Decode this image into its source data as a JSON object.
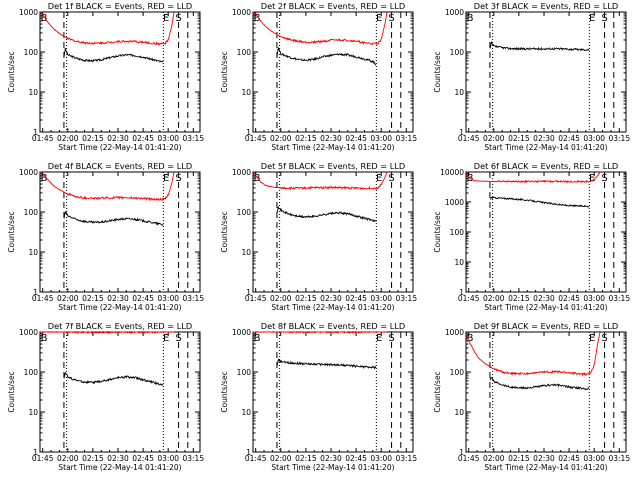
{
  "common": {
    "x_tick_labels": [
      "01:45",
      "02:00",
      "02:15",
      "02:30",
      "02:45",
      "03:00",
      "03:15"
    ],
    "x_ticks_minutes": [
      0,
      15,
      30,
      45,
      60,
      75,
      90
    ],
    "xlabel": "Start Time (22-May-14 01:41:20)",
    "ylabel": "Counts/sec",
    "marker_labels": {
      "start": "B",
      "end": "E",
      "sat": "S"
    },
    "colors": {
      "events": "#000000",
      "lld": "#ff0000"
    }
  },
  "chart_data": [
    {
      "type": "line",
      "title": "Det 1f BLACK = Events, RED = LLD",
      "ylim": [
        1,
        1000
      ],
      "y_tick_labels": [
        "1",
        "10",
        "100",
        "1000"
      ],
      "x_range_minutes": [
        -1.6,
        94
      ],
      "markers": {
        "B": -1,
        "dash1": 12.7,
        "dot1": 14.3,
        "dot2": 72.1,
        "E": 73.8,
        "S": 81.2,
        "dash3": 86.7
      },
      "series": [
        {
          "name": "Events",
          "color": "#000000",
          "x": [
            12.8,
            13.5,
            15,
            20,
            25,
            30,
            35,
            40,
            45,
            50,
            55,
            60,
            65,
            70,
            72
          ],
          "values": [
            80,
            120,
            85,
            70,
            62,
            60,
            64,
            72,
            80,
            85,
            82,
            75,
            66,
            58,
            55
          ]
        },
        {
          "name": "LLD",
          "color": "#ff0000",
          "x": [
            -1.5,
            0,
            3,
            6,
            10,
            15,
            20,
            25,
            30,
            35,
            40,
            45,
            50,
            55,
            60,
            65,
            70,
            73,
            75,
            77,
            78.5
          ],
          "values": [
            1050,
            850,
            560,
            400,
            290,
            215,
            185,
            170,
            165,
            168,
            175,
            182,
            185,
            182,
            175,
            165,
            160,
            160,
            200,
            420,
            1000
          ]
        }
      ]
    },
    {
      "type": "line",
      "title": "Det 2f BLACK = Events, RED = LLD",
      "ylim": [
        1,
        1000
      ],
      "y_tick_labels": [
        "1",
        "10",
        "100",
        "1000"
      ],
      "x_range_minutes": [
        -1.6,
        94
      ],
      "markers": {
        "B": -1,
        "dash1": 12.7,
        "dot1": 14.3,
        "dot2": 72.1,
        "E": 73.8,
        "S": 81.2,
        "dash3": 86.7
      },
      "series": [
        {
          "name": "Events",
          "color": "#000000",
          "x": [
            12.8,
            13.5,
            15,
            20,
            25,
            30,
            35,
            40,
            45,
            50,
            55,
            60,
            65,
            70,
            72
          ],
          "values": [
            85,
            130,
            90,
            75,
            65,
            62,
            66,
            75,
            83,
            88,
            84,
            76,
            67,
            58,
            48
          ]
        },
        {
          "name": "LLD",
          "color": "#ff0000",
          "x": [
            -1.5,
            0,
            3,
            6,
            10,
            15,
            20,
            25,
            30,
            35,
            40,
            45,
            50,
            55,
            60,
            65,
            70,
            73,
            75,
            77,
            78.5
          ],
          "values": [
            1050,
            900,
            600,
            430,
            320,
            240,
            205,
            185,
            175,
            178,
            185,
            195,
            200,
            195,
            185,
            170,
            160,
            162,
            210,
            450,
            1000
          ]
        }
      ]
    },
    {
      "type": "line",
      "title": "Det 3f BLACK = Events, RED = LLD",
      "ylim": [
        1,
        1000
      ],
      "y_tick_labels": [
        "1",
        "10",
        "100",
        "1000"
      ],
      "x_range_minutes": [
        -1.6,
        94
      ],
      "markers": {
        "B": -1,
        "dash1": 12.7,
        "dot1": 14.3,
        "dot2": 72.1,
        "E": 73.8,
        "S": 81.2,
        "dash3": 86.7
      },
      "series": [
        {
          "name": "Events",
          "color": "#000000",
          "x": [
            12.8,
            13.5,
            15,
            20,
            25,
            30,
            35,
            40,
            45,
            50,
            55,
            60,
            65,
            70,
            72
          ],
          "values": [
            120,
            165,
            140,
            128,
            122,
            120,
            120,
            120,
            120,
            121,
            120,
            118,
            116,
            114,
            112
          ]
        }
      ]
    },
    {
      "type": "line",
      "title": "Det 4f BLACK = Events, RED = LLD",
      "ylim": [
        1,
        1000
      ],
      "y_tick_labels": [
        "1",
        "10",
        "100",
        "1000"
      ],
      "x_range_minutes": [
        -1.6,
        94
      ],
      "markers": {
        "B": -1,
        "dash1": 12.7,
        "dot1": 14.3,
        "dot2": 72.1,
        "E": 73.8,
        "S": 81.2,
        "dash3": 86.7
      },
      "series": [
        {
          "name": "Events",
          "color": "#000000",
          "x": [
            12.8,
            13.5,
            15,
            20,
            25,
            30,
            35,
            40,
            45,
            50,
            55,
            60,
            65,
            70,
            72
          ],
          "values": [
            70,
            100,
            80,
            65,
            58,
            55,
            56,
            60,
            65,
            68,
            66,
            60,
            55,
            50,
            47
          ]
        },
        {
          "name": "LLD",
          "color": "#ff0000",
          "x": [
            -1.5,
            0,
            3,
            6,
            10,
            15,
            20,
            25,
            30,
            35,
            40,
            45,
            50,
            55,
            60,
            65,
            70,
            73,
            75,
            77,
            78.5
          ],
          "values": [
            1050,
            900,
            650,
            470,
            360,
            280,
            240,
            225,
            220,
            222,
            225,
            228,
            228,
            224,
            218,
            210,
            205,
            210,
            260,
            500,
            1000
          ]
        }
      ]
    },
    {
      "type": "line",
      "title": "Det 5f BLACK = Events, RED = LLD",
      "ylim": [
        1,
        1000
      ],
      "y_tick_labels": [
        "1",
        "10",
        "100",
        "1000"
      ],
      "x_range_minutes": [
        -1.6,
        94
      ],
      "markers": {
        "B": -1,
        "dash1": 12.7,
        "dot1": 14.3,
        "dot2": 72.1,
        "E": 73.8,
        "S": 81.2,
        "dash3": 86.7
      },
      "series": [
        {
          "name": "Events",
          "color": "#000000",
          "x": [
            12.8,
            13.5,
            15,
            20,
            25,
            30,
            35,
            40,
            45,
            50,
            55,
            60,
            65,
            70,
            72
          ],
          "values": [
            100,
            140,
            110,
            88,
            78,
            75,
            78,
            85,
            92,
            95,
            90,
            80,
            70,
            62,
            58
          ]
        },
        {
          "name": "LLD",
          "color": "#ff0000",
          "x": [
            -1.5,
            0,
            3,
            6,
            10,
            15,
            20,
            25,
            30,
            35,
            40,
            45,
            50,
            55,
            60,
            65,
            70,
            73,
            75,
            77,
            78.5
          ],
          "values": [
            1000,
            820,
            560,
            460,
            420,
            400,
            395,
            395,
            400,
            405,
            410,
            410,
            405,
            400,
            395,
            390,
            392,
            400,
            480,
            700,
            1000
          ]
        }
      ]
    },
    {
      "type": "line",
      "title": "Det 6f BLACK = Events, RED = LLD",
      "ylim": [
        1,
        10000
      ],
      "y_tick_labels": [
        "1",
        "10",
        "100",
        "1000",
        "10000"
      ],
      "x_range_minutes": [
        -1.6,
        94
      ],
      "markers": {
        "B": -1,
        "dash1": 12.7,
        "dot1": 14.3,
        "dot2": 72.1,
        "E": 73.8,
        "S": 81.2,
        "dash3": 86.7
      },
      "series": [
        {
          "name": "Events",
          "color": "#000000",
          "x": [
            12.8,
            13.5,
            15,
            20,
            25,
            30,
            35,
            40,
            45,
            50,
            55,
            60,
            65,
            70,
            72
          ],
          "values": [
            1200,
            1400,
            1380,
            1330,
            1280,
            1220,
            1150,
            1050,
            950,
            880,
            800,
            760,
            740,
            730,
            720
          ]
        },
        {
          "name": "LLD",
          "color": "#ff0000",
          "x": [
            -1.5,
            0,
            3,
            6,
            10,
            15,
            20,
            25,
            30,
            35,
            40,
            45,
            50,
            55,
            60,
            65,
            70,
            73,
            75,
            77,
            78.5
          ],
          "values": [
            9000,
            6500,
            5200,
            5000,
            4900,
            4850,
            4850,
            4850,
            4800,
            4800,
            4850,
            4850,
            4850,
            4850,
            4800,
            4800,
            4800,
            4900,
            5500,
            7500,
            10000
          ]
        }
      ]
    },
    {
      "type": "line",
      "title": "Det 7f BLACK = Events, RED = LLD",
      "ylim": [
        1,
        1000
      ],
      "y_tick_labels": [
        "1",
        "10",
        "100",
        "1000"
      ],
      "x_range_minutes": [
        -1.6,
        94
      ],
      "markers": {
        "B": -1,
        "dash1": 12.7,
        "dot1": 14.3,
        "dot2": 72.1,
        "E": 73.8,
        "S": 81.2,
        "dash3": 86.7
      },
      "series": [
        {
          "name": "Events",
          "color": "#000000",
          "x": [
            12.8,
            13.5,
            15,
            20,
            25,
            30,
            35,
            40,
            45,
            50,
            55,
            60,
            65,
            70,
            72
          ],
          "values": [
            70,
            100,
            75,
            62,
            56,
            55,
            58,
            65,
            72,
            76,
            72,
            64,
            56,
            50,
            48
          ]
        },
        {
          "name": "LLD",
          "color": "#ff0000",
          "x": [
            -1.5,
            0,
            10,
            20,
            30,
            40,
            50,
            60,
            70,
            78.5
          ],
          "values": [
            980,
            1000,
            1000,
            990,
            1000,
            990,
            1000,
            990,
            1000,
            1000
          ]
        }
      ]
    },
    {
      "type": "line",
      "title": "Det 8f BLACK = Events, RED = LLD",
      "ylim": [
        1,
        1000
      ],
      "y_tick_labels": [
        "1",
        "10",
        "100",
        "1000"
      ],
      "x_range_minutes": [
        -1.6,
        94
      ],
      "markers": {
        "B": -1,
        "dash1": 12.7,
        "dot1": 14.3,
        "dot2": 72.1,
        "E": 73.8,
        "S": 81.2,
        "dash3": 86.7
      },
      "series": [
        {
          "name": "Events",
          "color": "#000000",
          "x": [
            12.8,
            13.5,
            15,
            20,
            25,
            30,
            35,
            40,
            45,
            50,
            55,
            60,
            65,
            70,
            72
          ],
          "values": [
            150,
            200,
            180,
            170,
            165,
            160,
            158,
            155,
            152,
            150,
            145,
            140,
            135,
            130,
            128
          ]
        },
        {
          "name": "LLD",
          "color": "#ff0000",
          "x": [
            -1.5,
            0,
            10,
            20,
            30,
            40,
            50,
            60,
            70,
            78.5
          ],
          "values": [
            1000,
            1000,
            1000,
            1000,
            1000,
            1000,
            1000,
            1000,
            1000,
            1000
          ]
        }
      ]
    },
    {
      "type": "line",
      "title": "Det 9f BLACK = Events, RED = LLD",
      "ylim": [
        1,
        1000
      ],
      "y_tick_labels": [
        "1",
        "10",
        "100",
        "1000"
      ],
      "x_range_minutes": [
        -1.6,
        94
      ],
      "markers": {
        "B": -1,
        "dash1": 12.7,
        "dot1": 14.3,
        "dot2": 72.1,
        "E": 73.8,
        "S": 81.2,
        "dash3": 86.7
      },
      "series": [
        {
          "name": "Events",
          "color": "#000000",
          "x": [
            12.8,
            13.5,
            15,
            20,
            25,
            30,
            35,
            40,
            45,
            50,
            55,
            60,
            65,
            70,
            72
          ],
          "values": [
            60,
            75,
            58,
            48,
            42,
            40,
            40,
            42,
            45,
            48,
            46,
            42,
            40,
            38,
            40
          ]
        },
        {
          "name": "LLD",
          "color": "#ff0000",
          "x": [
            -1.5,
            0,
            3,
            6,
            10,
            15,
            20,
            25,
            30,
            35,
            40,
            45,
            50,
            55,
            60,
            65,
            70,
            73,
            75,
            77,
            78.5
          ],
          "values": [
            800,
            600,
            350,
            220,
            160,
            120,
            100,
            92,
            90,
            92,
            95,
            100,
            102,
            100,
            96,
            90,
            88,
            95,
            150,
            500,
            1000
          ]
        }
      ]
    }
  ]
}
